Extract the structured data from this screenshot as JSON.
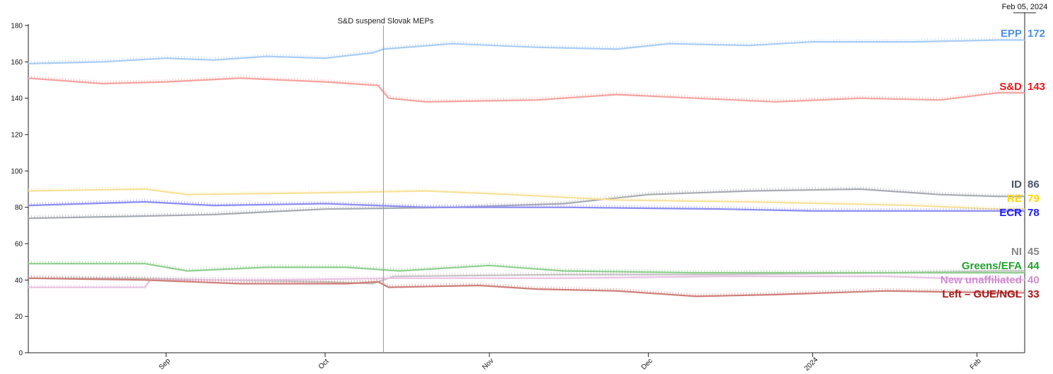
{
  "chart_data": {
    "type": "line",
    "annotation": "S&D suspend Slovak MEPs",
    "current_date": "Feb 05, 2024",
    "ylim": [
      0,
      180
    ],
    "yticks": [
      0,
      20,
      40,
      60,
      80,
      100,
      120,
      140,
      160,
      180
    ],
    "x_range": [
      "2023-08-06",
      "2024-02-10"
    ],
    "annotation_date": "2023-10-12",
    "xticks": [
      {
        "label": "Sep",
        "date": "2023-09-01"
      },
      {
        "label": "Oct",
        "date": "2023-10-01"
      },
      {
        "label": "Nov",
        "date": "2023-11-01"
      },
      {
        "label": "Dec",
        "date": "2023-12-01"
      },
      {
        "label": "2024",
        "date": "2024-01-01"
      },
      {
        "label": "Feb",
        "date": "2024-02-01"
      }
    ],
    "series": [
      {
        "name": "EPP",
        "value": 172,
        "color": "#4a90e2",
        "line_color": "#a9cdf5",
        "points": [
          [
            "2023-08-06",
            159
          ],
          [
            "2023-08-20",
            160
          ],
          [
            "2023-09-01",
            162
          ],
          [
            "2023-09-10",
            161
          ],
          [
            "2023-09-20",
            163
          ],
          [
            "2023-10-01",
            162
          ],
          [
            "2023-10-10",
            165
          ],
          [
            "2023-10-12",
            167
          ],
          [
            "2023-10-25",
            170
          ],
          [
            "2023-11-10",
            168
          ],
          [
            "2023-11-25",
            167
          ],
          [
            "2023-12-05",
            170
          ],
          [
            "2023-12-20",
            169
          ],
          [
            "2024-01-01",
            171
          ],
          [
            "2024-01-20",
            171
          ],
          [
            "2024-02-05",
            172
          ]
        ]
      },
      {
        "name": "S&D",
        "value": 143,
        "color": "#e8191b",
        "line_color": "#f5a3a0",
        "points": [
          [
            "2023-08-06",
            151
          ],
          [
            "2023-08-20",
            148
          ],
          [
            "2023-09-01",
            149
          ],
          [
            "2023-09-15",
            151
          ],
          [
            "2023-10-01",
            149
          ],
          [
            "2023-10-11",
            147
          ],
          [
            "2023-10-13",
            140
          ],
          [
            "2023-10-20",
            138
          ],
          [
            "2023-11-10",
            139
          ],
          [
            "2023-11-25",
            142
          ],
          [
            "2023-12-10",
            140
          ],
          [
            "2023-12-25",
            138
          ],
          [
            "2024-01-10",
            140
          ],
          [
            "2024-01-25",
            139
          ],
          [
            "2024-02-05",
            143
          ]
        ]
      },
      {
        "name": "ID",
        "value": 86,
        "color": "#4a5568",
        "line_color": "#a7acb3",
        "points": [
          [
            "2023-08-06",
            74
          ],
          [
            "2023-08-25",
            75
          ],
          [
            "2023-09-10",
            76
          ],
          [
            "2023-10-01",
            79
          ],
          [
            "2023-10-25",
            80
          ],
          [
            "2023-11-15",
            82
          ],
          [
            "2023-12-01",
            87
          ],
          [
            "2023-12-20",
            89
          ],
          [
            "2024-01-10",
            90
          ],
          [
            "2024-01-25",
            87
          ],
          [
            "2024-02-05",
            86
          ]
        ]
      },
      {
        "name": "RE",
        "value": 79,
        "color": "#ffd700",
        "line_color": "#f7e29a",
        "points": [
          [
            "2023-08-06",
            89
          ],
          [
            "2023-08-28",
            90
          ],
          [
            "2023-09-05",
            87
          ],
          [
            "2023-10-01",
            88
          ],
          [
            "2023-10-20",
            89
          ],
          [
            "2023-11-05",
            87
          ],
          [
            "2023-11-25",
            84
          ],
          [
            "2023-12-20",
            83
          ],
          [
            "2024-01-20",
            81
          ],
          [
            "2024-02-05",
            79
          ]
        ]
      },
      {
        "name": "ECR",
        "value": 78,
        "color": "#1a1aff",
        "line_color": "#8c8cf5",
        "points": [
          [
            "2023-08-06",
            81
          ],
          [
            "2023-08-28",
            83
          ],
          [
            "2023-09-10",
            81
          ],
          [
            "2023-10-01",
            82
          ],
          [
            "2023-10-20",
            80
          ],
          [
            "2023-11-15",
            80
          ],
          [
            "2023-12-15",
            79
          ],
          [
            "2024-01-01",
            78
          ],
          [
            "2024-02-05",
            78
          ]
        ]
      },
      {
        "name": "NI",
        "value": 45,
        "color": "#888888",
        "line_color": "#c3c3c3",
        "points": [
          [
            "2023-08-06",
            41
          ],
          [
            "2023-08-25",
            41
          ],
          [
            "2023-09-10",
            40
          ],
          [
            "2023-10-01",
            39
          ],
          [
            "2023-10-10",
            38
          ],
          [
            "2023-10-14",
            42
          ],
          [
            "2023-11-15",
            43
          ],
          [
            "2023-12-15",
            43
          ],
          [
            "2024-01-15",
            44
          ],
          [
            "2024-02-05",
            45
          ]
        ]
      },
      {
        "name": "Greens/EFA",
        "value": 44,
        "color": "#22a12c",
        "line_color": "#8fcf8f",
        "points": [
          [
            "2023-08-06",
            49
          ],
          [
            "2023-08-28",
            49
          ],
          [
            "2023-09-05",
            45
          ],
          [
            "2023-09-20",
            47
          ],
          [
            "2023-10-05",
            47
          ],
          [
            "2023-10-15",
            45
          ],
          [
            "2023-11-01",
            48
          ],
          [
            "2023-11-15",
            45
          ],
          [
            "2023-12-10",
            44
          ],
          [
            "2024-01-10",
            44
          ],
          [
            "2024-02-05",
            44
          ]
        ]
      },
      {
        "name": "New unaffiliated",
        "value": 40,
        "color": "#d08ed0",
        "line_color": "#e9c3e3",
        "points": [
          [
            "2023-08-06",
            36
          ],
          [
            "2023-08-28",
            36
          ],
          [
            "2023-08-29",
            40
          ],
          [
            "2023-09-20",
            40
          ],
          [
            "2023-10-15",
            41
          ],
          [
            "2023-11-15",
            41
          ],
          [
            "2023-12-15",
            42
          ],
          [
            "2024-01-15",
            42
          ],
          [
            "2024-02-05",
            40
          ]
        ]
      },
      {
        "name": "Left – GUE/NGL",
        "value": 33,
        "color": "#a31515",
        "line_color": "#cf7e7a",
        "points": [
          [
            "2023-08-06",
            41
          ],
          [
            "2023-08-28",
            40
          ],
          [
            "2023-09-15",
            38
          ],
          [
            "2023-10-05",
            38
          ],
          [
            "2023-10-11",
            39
          ],
          [
            "2023-10-13",
            36
          ],
          [
            "2023-10-30",
            37
          ],
          [
            "2023-11-10",
            35
          ],
          [
            "2023-11-25",
            34
          ],
          [
            "2023-12-10",
            31
          ],
          [
            "2023-12-25",
            32
          ],
          [
            "2024-01-15",
            34
          ],
          [
            "2024-02-05",
            33
          ]
        ]
      }
    ]
  }
}
